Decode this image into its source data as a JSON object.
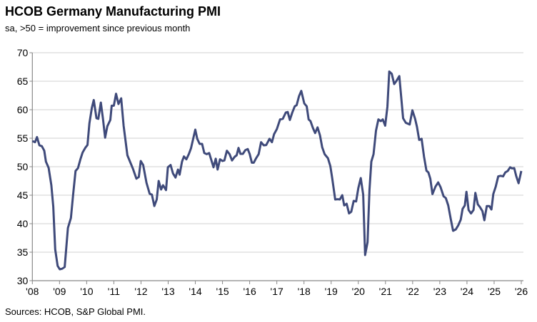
{
  "chart_data": {
    "type": "line",
    "title": "HCOB Germany Manufacturing PMI",
    "subtitle": "sa, >50 = improvement since previous month",
    "source": "Sources: HCOB, S&P Global PMI.",
    "xlabel": "",
    "ylabel": "",
    "ylim": [
      30,
      70
    ],
    "yticks": [
      30,
      35,
      40,
      45,
      50,
      55,
      60,
      65,
      70
    ],
    "xlim": [
      2008,
      2026
    ],
    "xtick_labels": [
      "'08",
      "'09",
      "'10",
      "'11",
      "'12",
      "'13",
      "'14",
      "'15",
      "'16",
      "'17",
      "'18",
      "'19",
      "'20",
      "'21",
      "'22",
      "'23",
      "'24",
      "'25",
      "'26"
    ],
    "grid": "horizontal",
    "legend": "none",
    "line_color": "#3f4a7a",
    "series": [
      {
        "points": [
          [
            2008.0,
            54.5
          ],
          [
            2008.1,
            54.3
          ],
          [
            2008.17,
            55.2
          ],
          [
            2008.26,
            53.75
          ],
          [
            2008.35,
            53.6
          ],
          [
            2008.44,
            52.8
          ],
          [
            2008.5,
            50.9
          ],
          [
            2008.6,
            49.8
          ],
          [
            2008.7,
            46.75
          ],
          [
            2008.77,
            43
          ],
          [
            2008.84,
            35.5
          ],
          [
            2008.93,
            32.6
          ],
          [
            2009.01,
            32
          ],
          [
            2009.1,
            32.1
          ],
          [
            2009.19,
            32.4
          ],
          [
            2009.31,
            39.25
          ],
          [
            2009.42,
            41
          ],
          [
            2009.5,
            45.1
          ],
          [
            2009.59,
            49.25
          ],
          [
            2009.68,
            49.75
          ],
          [
            2009.77,
            51.3
          ],
          [
            2009.85,
            52.5
          ],
          [
            2009.96,
            53.4
          ],
          [
            2010.03,
            53.8
          ],
          [
            2010.1,
            57.6
          ],
          [
            2010.19,
            60.3
          ],
          [
            2010.26,
            61.7
          ],
          [
            2010.36,
            58.5
          ],
          [
            2010.43,
            58.4
          ],
          [
            2010.52,
            61.25
          ],
          [
            2010.6,
            58.4
          ],
          [
            2010.68,
            55.1
          ],
          [
            2010.76,
            57.1
          ],
          [
            2010.87,
            58.2
          ],
          [
            2010.92,
            60.7
          ],
          [
            2011.0,
            60.7
          ],
          [
            2011.08,
            62.8
          ],
          [
            2011.17,
            61
          ],
          [
            2011.27,
            62
          ],
          [
            2011.36,
            57.2
          ],
          [
            2011.5,
            52
          ],
          [
            2011.62,
            50.6
          ],
          [
            2011.7,
            49.7
          ],
          [
            2011.83,
            47.9
          ],
          [
            2011.92,
            48.2
          ],
          [
            2011.99,
            51
          ],
          [
            2012.08,
            50.3
          ],
          [
            2012.2,
            47.2
          ],
          [
            2012.32,
            45.25
          ],
          [
            2012.4,
            45.1
          ],
          [
            2012.49,
            43.1
          ],
          [
            2012.58,
            44.25
          ],
          [
            2012.65,
            47.5
          ],
          [
            2012.74,
            46
          ],
          [
            2012.81,
            46.75
          ],
          [
            2012.92,
            45.9
          ],
          [
            2012.99,
            49.9
          ],
          [
            2013.09,
            50.3
          ],
          [
            2013.18,
            48.8
          ],
          [
            2013.27,
            48.1
          ],
          [
            2013.36,
            49.5
          ],
          [
            2013.42,
            48.6
          ],
          [
            2013.51,
            50.9
          ],
          [
            2013.58,
            51.8
          ],
          [
            2013.67,
            51.3
          ],
          [
            2013.76,
            52.2
          ],
          [
            2013.84,
            53.2
          ],
          [
            2013.93,
            55.1
          ],
          [
            2014.0,
            56.5
          ],
          [
            2014.07,
            54.9
          ],
          [
            2014.16,
            54
          ],
          [
            2014.25,
            54
          ],
          [
            2014.33,
            52.4
          ],
          [
            2014.42,
            52.2
          ],
          [
            2014.51,
            52.4
          ],
          [
            2014.58,
            51.3
          ],
          [
            2014.67,
            49.9
          ],
          [
            2014.75,
            51.4
          ],
          [
            2014.82,
            49.5
          ],
          [
            2014.91,
            51.3
          ],
          [
            2015.0,
            51
          ],
          [
            2015.07,
            51.1
          ],
          [
            2015.16,
            52.8
          ],
          [
            2015.26,
            52.2
          ],
          [
            2015.35,
            51.1
          ],
          [
            2015.45,
            51.75
          ],
          [
            2015.52,
            52
          ],
          [
            2015.59,
            53.3
          ],
          [
            2015.66,
            52.25
          ],
          [
            2015.75,
            52.25
          ],
          [
            2015.84,
            52.9
          ],
          [
            2015.93,
            53.1
          ],
          [
            2016.0,
            52.25
          ],
          [
            2016.08,
            50.7
          ],
          [
            2016.15,
            50.7
          ],
          [
            2016.24,
            51.5
          ],
          [
            2016.33,
            52.2
          ],
          [
            2016.42,
            54.3
          ],
          [
            2016.52,
            53.75
          ],
          [
            2016.61,
            53.8
          ],
          [
            2016.73,
            54.9
          ],
          [
            2016.82,
            54.3
          ],
          [
            2016.9,
            55.7
          ],
          [
            2017.0,
            56.6
          ],
          [
            2017.12,
            58.3
          ],
          [
            2017.22,
            58.4
          ],
          [
            2017.33,
            59.5
          ],
          [
            2017.4,
            59.6
          ],
          [
            2017.48,
            58.2
          ],
          [
            2017.57,
            59.5
          ],
          [
            2017.66,
            60.6
          ],
          [
            2017.73,
            60.8
          ],
          [
            2017.82,
            62.4
          ],
          [
            2017.9,
            63.3
          ],
          [
            2018.01,
            61.1
          ],
          [
            2018.1,
            60.6
          ],
          [
            2018.17,
            58.3
          ],
          [
            2018.24,
            58
          ],
          [
            2018.33,
            56.8
          ],
          [
            2018.41,
            55.9
          ],
          [
            2018.5,
            56.9
          ],
          [
            2018.59,
            55.5
          ],
          [
            2018.67,
            53.4
          ],
          [
            2018.76,
            52.2
          ],
          [
            2018.88,
            51.5
          ],
          [
            2018.97,
            50.1
          ],
          [
            2019.04,
            48
          ],
          [
            2019.15,
            44.25
          ],
          [
            2019.25,
            44.3
          ],
          [
            2019.32,
            44.25
          ],
          [
            2019.41,
            45
          ],
          [
            2019.48,
            43.2
          ],
          [
            2019.57,
            43.5
          ],
          [
            2019.66,
            41.8
          ],
          [
            2019.74,
            42.1
          ],
          [
            2019.83,
            44
          ],
          [
            2019.92,
            43.9
          ],
          [
            2020.0,
            46.25
          ],
          [
            2020.09,
            48
          ],
          [
            2020.18,
            45.1
          ],
          [
            2020.25,
            34.5
          ],
          [
            2020.34,
            36.75
          ],
          [
            2020.41,
            45.9
          ],
          [
            2020.48,
            50.9
          ],
          [
            2020.56,
            52.2
          ],
          [
            2020.65,
            56.3
          ],
          [
            2020.74,
            58.3
          ],
          [
            2020.83,
            58
          ],
          [
            2020.9,
            58.3
          ],
          [
            2020.99,
            57.2
          ],
          [
            2021.07,
            60.5
          ],
          [
            2021.14,
            66.7
          ],
          [
            2021.23,
            66.3
          ],
          [
            2021.32,
            64.5
          ],
          [
            2021.41,
            65.1
          ],
          [
            2021.51,
            65.9
          ],
          [
            2021.65,
            58.5
          ],
          [
            2021.75,
            57.7
          ],
          [
            2021.89,
            57.4
          ],
          [
            2021.99,
            59.9
          ],
          [
            2022.09,
            58.4
          ],
          [
            2022.16,
            57
          ],
          [
            2022.24,
            54.7
          ],
          [
            2022.33,
            54.9
          ],
          [
            2022.42,
            51.75
          ],
          [
            2022.51,
            49.3
          ],
          [
            2022.58,
            49
          ],
          [
            2022.65,
            47.9
          ],
          [
            2022.73,
            45.2
          ],
          [
            2022.84,
            46.5
          ],
          [
            2022.94,
            47.25
          ],
          [
            2023.03,
            46.4
          ],
          [
            2023.14,
            44.8
          ],
          [
            2023.22,
            44.5
          ],
          [
            2023.31,
            43.2
          ],
          [
            2023.4,
            40.9
          ],
          [
            2023.49,
            38.75
          ],
          [
            2023.59,
            39
          ],
          [
            2023.68,
            39.7
          ],
          [
            2023.77,
            40.7
          ],
          [
            2023.84,
            42.6
          ],
          [
            2023.92,
            43.2
          ],
          [
            2023.98,
            45.6
          ],
          [
            2024.06,
            42.4
          ],
          [
            2024.15,
            41.8
          ],
          [
            2024.24,
            42.4
          ],
          [
            2024.31,
            45.4
          ],
          [
            2024.4,
            43.4
          ],
          [
            2024.48,
            42.9
          ],
          [
            2024.57,
            42.2
          ],
          [
            2024.64,
            40.6
          ],
          [
            2024.73,
            43.1
          ],
          [
            2024.82,
            43.1
          ],
          [
            2024.9,
            42.5
          ],
          [
            2024.97,
            45.2
          ],
          [
            2025.06,
            46.5
          ],
          [
            2025.15,
            48.3
          ],
          [
            2025.24,
            48.4
          ],
          [
            2025.33,
            48.3
          ],
          [
            2025.41,
            49
          ],
          [
            2025.5,
            49.25
          ],
          [
            2025.59,
            49.9
          ],
          [
            2025.66,
            49.7
          ],
          [
            2025.74,
            49.75
          ],
          [
            2025.81,
            48.4
          ],
          [
            2025.9,
            47.1
          ],
          [
            2026.0,
            49.25
          ]
        ]
      }
    ]
  }
}
